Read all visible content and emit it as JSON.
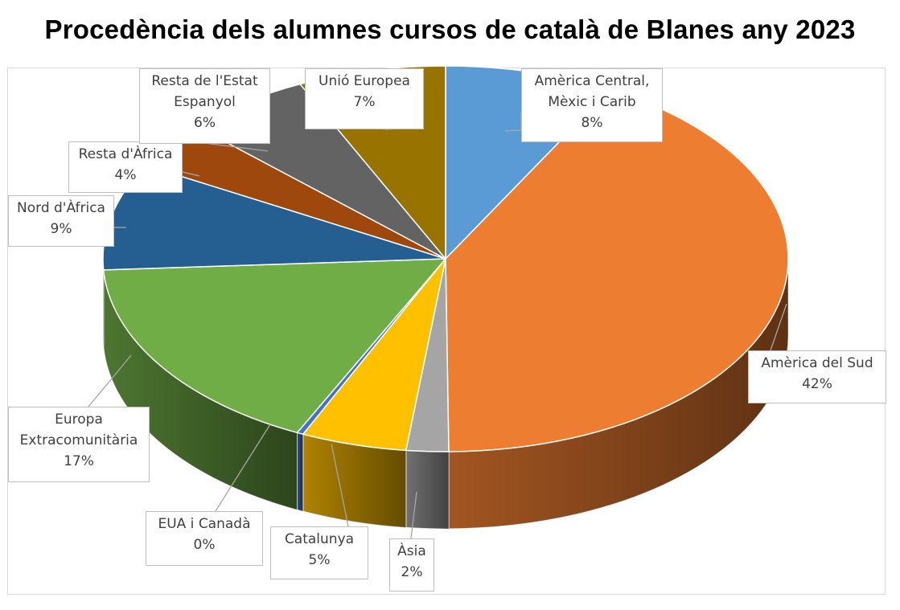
{
  "chart_data": {
    "type": "pie",
    "title": "Procedència dels alumnes cursos de català de Blanes any 2023",
    "slices": [
      {
        "name": "Amèrica Central, Mèxic i Carib",
        "label_lines": [
          "Amèrica Central,",
          "Mèxic i Carib"
        ],
        "value": 8,
        "pct_label": "8%",
        "color": "#5b9bd5"
      },
      {
        "name": "Amèrica del Sud",
        "label_lines": [
          "Amèrica del Sud"
        ],
        "value": 42,
        "pct_label": "42%",
        "color": "#ed7d31"
      },
      {
        "name": "Àsia",
        "label_lines": [
          "Àsia"
        ],
        "value": 2,
        "pct_label": "2%",
        "color": "#a5a5a5"
      },
      {
        "name": "Catalunya",
        "label_lines": [
          "Catalunya"
        ],
        "value": 5,
        "pct_label": "5%",
        "color": "#ffc000"
      },
      {
        "name": "EUA i Canadà",
        "label_lines": [
          "EUA i Canadà"
        ],
        "value": 0.3,
        "pct_label": "0%",
        "color": "#4472c4"
      },
      {
        "name": "Europa Extracomunitària",
        "label_lines": [
          "Europa",
          "Extracomunitària"
        ],
        "value": 17,
        "pct_label": "17%",
        "color": "#70ad47"
      },
      {
        "name": "Nord d'Àfrica",
        "label_lines": [
          "Nord d'Àfrica"
        ],
        "value": 9,
        "pct_label": "9%",
        "color": "#255e91"
      },
      {
        "name": "Resta d'Àfrica",
        "label_lines": [
          "Resta d'Àfrica"
        ],
        "value": 4,
        "pct_label": "4%",
        "color": "#9e480e"
      },
      {
        "name": "Resta de l'Estat Espanyol",
        "label_lines": [
          "Resta de l'Estat",
          "Espanyol"
        ],
        "value": 6,
        "pct_label": "6%",
        "color": "#636363"
      },
      {
        "name": "Unió Europea",
        "label_lines": [
          "Unió Europea"
        ],
        "value": 7,
        "pct_label": "7%",
        "color": "#997300"
      }
    ],
    "legend": "none",
    "data_labels": "outside-with-leader-lines"
  }
}
